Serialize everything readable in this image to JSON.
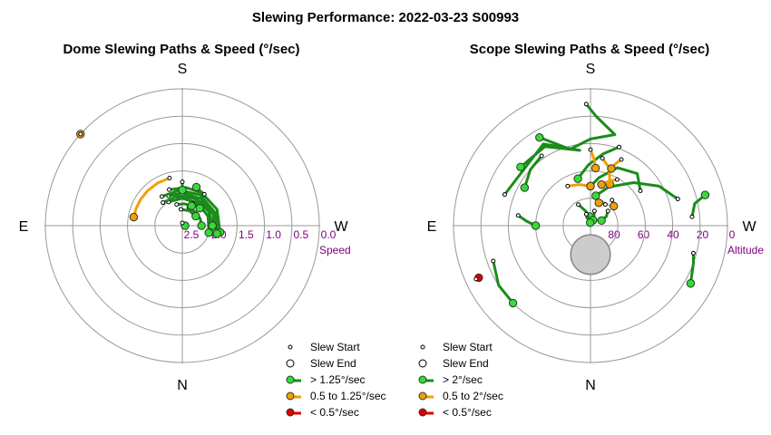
{
  "title": "Slewing Performance: 2022-03-23 S00993",
  "colors": {
    "fast": "#1a8c1a",
    "fast_marker": "#33dd33",
    "medium": "#f0a000",
    "medium_marker": "#f0a000",
    "slow": "#dd0000",
    "tick_label": "#800080",
    "ring": "#999999",
    "axis": "#999999",
    "sun_fill": "#cccccc",
    "sun_edge": "#888888"
  },
  "chart_data": [
    {
      "type": "polar",
      "title": "Dome Slewing Paths & Speed (°/sec)",
      "compass": {
        "top": "S",
        "bottom": "N",
        "left": "E",
        "right": "W"
      },
      "radial_axis": {
        "label": "Speed",
        "tick_labels": [
          "2.5",
          "2.0",
          "1.5",
          "1.0",
          "0.5",
          "0.0"
        ],
        "range": [
          2.5,
          0.0
        ]
      },
      "legend": [
        {
          "label": "Slew Start",
          "kind": "start"
        },
        {
          "label": "Slew End",
          "kind": "end"
        },
        {
          "label": "> 1.25°/sec",
          "kind": "fast"
        },
        {
          "label": "0.5 to 1.25°/sec",
          "kind": "medium"
        },
        {
          "label": "< 0.5°/sec",
          "kind": "slow"
        }
      ],
      "paths": [
        {
          "speed": "medium",
          "start": [
            165,
            1.6
          ],
          "end": [
            100,
            1.6
          ],
          "points": [
            [
              100,
              1.6
            ],
            [
              110,
              1.6
            ],
            [
              122,
              1.6
            ],
            [
              135,
              1.6
            ],
            [
              150,
              1.6
            ],
            [
              165,
              1.6
            ]
          ]
        },
        {
          "speed": "medium",
          "start": [
            132,
            0.0
          ],
          "end": [
            132,
            0.0
          ],
          "points": [
            [
              132,
              0.0
            ]
          ]
        },
        {
          "speed": "fast",
          "start": [
            180,
            2.45
          ],
          "end": [
            270,
            2.45
          ],
          "points": [
            [
              180,
              2.45
            ],
            [
              200,
              2.45
            ],
            [
              220,
              2.45
            ],
            [
              245,
              2.45
            ],
            [
              270,
              2.45
            ]
          ]
        },
        {
          "speed": "fast",
          "start": [
            170,
            1.95
          ],
          "end": [
            275,
            1.95
          ],
          "points": [
            [
              170,
              1.95
            ],
            [
              195,
              1.95
            ],
            [
              220,
              1.95
            ],
            [
              245,
              1.95
            ],
            [
              275,
              1.95
            ]
          ]
        },
        {
          "speed": "fast",
          "start": [
            160,
            1.8
          ],
          "end": [
            280,
            1.8
          ],
          "points": [
            [
              160,
              1.8
            ],
            [
              185,
              1.8
            ],
            [
              210,
              1.8
            ],
            [
              245,
              1.8
            ],
            [
              280,
              1.8
            ]
          ]
        },
        {
          "speed": "fast",
          "start": [
            155,
            1.9
          ],
          "end": [
            282,
            1.9
          ],
          "points": [
            [
              155,
              1.9
            ],
            [
              180,
              1.9
            ],
            [
              215,
              1.9
            ],
            [
              250,
              1.9
            ],
            [
              282,
              1.9
            ]
          ]
        },
        {
          "speed": "fast",
          "start": [
            150,
            2.0
          ],
          "end": [
            285,
            2.0
          ],
          "points": [
            [
              150,
              2.0
            ],
            [
              180,
              2.0
            ],
            [
              215,
              2.0
            ],
            [
              250,
              2.0
            ],
            [
              285,
              2.0
            ]
          ]
        },
        {
          "speed": "fast",
          "start": [
            145,
            1.85
          ],
          "end": [
            283,
            1.85
          ],
          "points": [
            [
              145,
              1.85
            ],
            [
              175,
              1.85
            ],
            [
              210,
              1.85
            ],
            [
              250,
              1.85
            ],
            [
              283,
              1.85
            ]
          ]
        },
        {
          "speed": "fast",
          "start": [
            140,
            1.95
          ],
          "end": [
            270,
            1.95
          ],
          "points": [
            [
              140,
              1.95
            ],
            [
              170,
              1.95
            ],
            [
              205,
              1.95
            ],
            [
              240,
              1.95
            ],
            [
              270,
              1.95
            ]
          ]
        },
        {
          "speed": "fast",
          "start": [
            200,
            2.15
          ],
          "end": [
            270,
            2.15
          ],
          "points": [
            [
              200,
              2.15
            ],
            [
              225,
              2.15
            ],
            [
              250,
              2.15
            ],
            [
              270,
              2.15
            ]
          ]
        },
        {
          "speed": "fast",
          "start": [
            215,
            1.8
          ],
          "end": [
            200,
            1.75
          ],
          "points": [
            [
              215,
              1.8
            ],
            [
              205,
              1.78
            ],
            [
              200,
              1.75
            ]
          ]
        },
        {
          "speed": "fast",
          "start": [
            205,
            2.05
          ],
          "end": [
            225,
            2.05
          ],
          "points": [
            [
              205,
              2.05
            ],
            [
              215,
              2.05
            ],
            [
              225,
              2.05
            ]
          ]
        },
        {
          "speed": "fast",
          "start": [
            165,
            2.1
          ],
          "end": [
            205,
            2.1
          ],
          "points": [
            [
              165,
              2.1
            ],
            [
              185,
              2.1
            ],
            [
              205,
              2.1
            ]
          ]
        },
        {
          "speed": "fast",
          "start": [
            175,
            2.2
          ],
          "end": [
            235,
            2.2
          ],
          "points": [
            [
              175,
              2.2
            ],
            [
              205,
              2.2
            ],
            [
              235,
              2.2
            ]
          ]
        },
        {
          "speed": "fast",
          "start": [
            180,
            1.7
          ],
          "end": [
            180,
            1.85
          ],
          "points": [
            [
              180,
              1.7
            ],
            [
              180,
              1.85
            ]
          ]
        }
      ]
    },
    {
      "type": "polar",
      "title": "Scope Slewing Paths & Speed (°/sec)",
      "compass": {
        "top": "S",
        "bottom": "N",
        "left": "E",
        "right": "W"
      },
      "radial_axis": {
        "label": "Altitude",
        "tick_labels": [
          "80",
          "60",
          "40",
          "20",
          "0"
        ],
        "range": [
          90,
          0
        ]
      },
      "legend": [
        {
          "label": "Slew Start",
          "kind": "start"
        },
        {
          "label": "Slew End",
          "kind": "end"
        },
        {
          "label": "> 2°/sec",
          "kind": "fast"
        },
        {
          "label": "0.5 to 2°/sec",
          "kind": "medium"
        },
        {
          "label": "< 0.5°/sec",
          "kind": "slow"
        }
      ],
      "sun": {
        "az": 0,
        "alt": 71,
        "radius_deg": 13
      },
      "paths": [
        {
          "speed": "fast",
          "start": [
            178,
            10
          ],
          "end": [
            150,
            23
          ],
          "points": [
            [
              178,
              10
            ],
            [
              183,
              18
            ],
            [
              195,
              28
            ],
            [
              180,
              33
            ],
            [
              165,
              38
            ],
            [
              150,
              23
            ]
          ]
        },
        {
          "speed": "fast",
          "start": [
            200,
            35
          ],
          "end": [
            165,
            58
          ],
          "points": [
            [
              200,
              35
            ],
            [
              190,
              42
            ],
            [
              178,
              50
            ],
            [
              165,
              58
            ]
          ]
        },
        {
          "speed": "fast",
          "start": [
            110,
            30
          ],
          "end": [
            130,
            30
          ],
          "points": [
            [
              110,
              30
            ],
            [
              150,
              28
            ],
            [
              172,
              40
            ],
            [
              150,
              30
            ],
            [
              130,
              30
            ]
          ]
        },
        {
          "speed": "fast",
          "start": [
            235,
            50
          ],
          "end": [
            180,
            64
          ],
          "points": [
            [
              235,
              50
            ],
            [
              222,
              44
            ],
            [
              205,
              48
            ],
            [
              190,
              58
            ],
            [
              180,
              64
            ]
          ]
        },
        {
          "speed": "fast",
          "start": [
            253,
            30
          ],
          "end": [
            190,
            70
          ],
          "points": [
            [
              253,
              30
            ],
            [
              240,
              38
            ],
            [
              225,
              50
            ],
            [
              205,
              62
            ],
            [
              190,
              70
            ]
          ]
        },
        {
          "speed": "fast",
          "start": [
            265,
            23
          ],
          "end": [
            255,
            12
          ],
          "points": [
            [
              265,
              23
            ],
            [
              258,
              20
            ],
            [
              255,
              12
            ]
          ]
        },
        {
          "speed": "fast",
          "start": [
            285,
            20
          ],
          "end": [
            300,
            14
          ],
          "points": [
            [
              285,
              20
            ],
            [
              290,
              18
            ],
            [
              300,
              14
            ]
          ]
        },
        {
          "speed": "fast",
          "start": [
            145,
            34
          ],
          "end": [
            120,
            40
          ],
          "points": [
            [
              145,
              34
            ],
            [
              133,
              36
            ],
            [
              120,
              40
            ]
          ]
        },
        {
          "speed": "fast",
          "start": [
            70,
            22
          ],
          "end": [
            45,
            18
          ],
          "points": [
            [
              70,
              22
            ],
            [
              57,
              18
            ],
            [
              45,
              18
            ]
          ]
        },
        {
          "speed": "fast",
          "start": [
            98,
            42
          ],
          "end": [
            90,
            54
          ],
          "points": [
            [
              98,
              42
            ],
            [
              94,
              48
            ],
            [
              90,
              54
            ]
          ]
        },
        {
          "speed": "fast",
          "start": [
            150,
            74
          ],
          "end": [
            175,
            84
          ],
          "points": [
            [
              150,
              74
            ],
            [
              162,
              80
            ],
            [
              175,
              84
            ]
          ]
        },
        {
          "speed": "fast",
          "start": [
            230,
            75
          ],
          "end": [
            245,
            82
          ],
          "points": [
            [
              230,
              75
            ],
            [
              240,
              78
            ],
            [
              245,
              82
            ]
          ]
        },
        {
          "speed": "fast",
          "start": [
            195,
            80
          ],
          "end": [
            205,
            86
          ],
          "points": [
            [
              195,
              80
            ],
            [
              200,
              83
            ],
            [
              205,
              86
            ]
          ]
        },
        {
          "speed": "fast",
          "start": [
            160,
            82
          ],
          "end": [
            175,
            88
          ],
          "points": [
            [
              160,
              82
            ],
            [
              168,
              85
            ],
            [
              175,
              88
            ]
          ]
        },
        {
          "speed": "medium",
          "start": [
            190,
            45
          ],
          "end": [
            205,
            60
          ],
          "points": [
            [
              190,
              45
            ],
            [
              198,
              50
            ],
            [
              205,
              60
            ]
          ]
        },
        {
          "speed": "medium",
          "start": [
            180,
            40
          ],
          "end": [
            185,
            52
          ],
          "points": [
            [
              180,
              40
            ],
            [
              183,
              46
            ],
            [
              185,
              52
            ]
          ]
        },
        {
          "speed": "medium",
          "start": [
            205,
            42
          ],
          "end": [
            200,
            50
          ],
          "points": [
            [
              205,
              42
            ],
            [
              202,
              46
            ],
            [
              200,
              50
            ]
          ]
        },
        {
          "speed": "medium",
          "start": [
            210,
            55
          ],
          "end": [
            195,
            62
          ],
          "points": [
            [
              210,
              55
            ],
            [
              203,
              58
            ],
            [
              195,
              62
            ]
          ]
        },
        {
          "speed": "medium",
          "start": [
            220,
            68
          ],
          "end": [
            230,
            70
          ],
          "points": [
            [
              220,
              68
            ],
            [
              226,
              69
            ],
            [
              230,
              70
            ]
          ]
        },
        {
          "speed": "medium",
          "start": [
            150,
            60
          ],
          "end": [
            180,
            64
          ],
          "points": [
            [
              150,
              60
            ],
            [
              165,
              62
            ],
            [
              180,
              64
            ]
          ]
        },
        {
          "speed": "medium",
          "start": [
            215,
            73
          ],
          "end": [
            200,
            74
          ],
          "points": [
            [
              215,
              73
            ],
            [
              207,
              73
            ],
            [
              200,
              74
            ]
          ]
        },
        {
          "speed": "slow",
          "start": [
            65,
            7
          ],
          "end": [
            65,
            9
          ],
          "points": [
            [
              65,
              7
            ],
            [
              65,
              9
            ]
          ]
        }
      ]
    }
  ]
}
